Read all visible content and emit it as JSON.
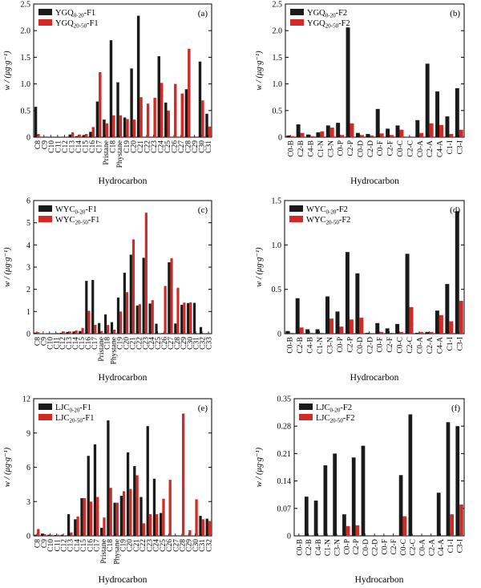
{
  "colors": {
    "series1": "#1a1a1a",
    "series2": "#d42a25"
  },
  "chart_data": [
    {
      "panel": "(a)",
      "type": "bar",
      "xlabel": "Hydrocarbon",
      "ylabel": "w / (μg·g⁻¹)",
      "ylim": [
        0,
        2.5
      ],
      "yticks": [
        "0",
        "0.5",
        "1.0",
        "1.5",
        "2.0",
        "2.5"
      ],
      "categories": [
        "C8",
        "C9",
        "C10",
        "C11",
        "C12",
        "C13",
        "C14",
        "C15",
        "C16",
        "C17",
        "Pristane",
        "C18",
        "Phystane",
        "C19",
        "C20",
        "C21",
        "C22",
        "C23",
        "C24",
        "C25",
        "C26",
        "C27",
        "C28",
        "C29",
        "C30",
        "C31"
      ],
      "series": [
        {
          "name_base": "YGQ",
          "name_sub": "0-20",
          "name_suffix": "-F1",
          "values": [
            0.57,
            0,
            0,
            0,
            0,
            0.05,
            0.02,
            0.04,
            0.1,
            0.67,
            0.33,
            1.82,
            1.03,
            0.37,
            1.29,
            2.28,
            0,
            0,
            1.52,
            0.65,
            0,
            0,
            0.9,
            0,
            1.42,
            0.44
          ]
        },
        {
          "name_base": "YGQ",
          "name_sub": "20-50",
          "name_suffix": "-F1",
          "values": [
            0.06,
            0,
            0,
            0,
            0,
            0.09,
            0.05,
            0.06,
            0.19,
            1.22,
            0.26,
            0.41,
            0.41,
            0.34,
            0.33,
            0.75,
            0.63,
            0.74,
            1.02,
            0.5,
            1.0,
            0.82,
            1.66,
            0,
            0.69,
            0.2
          ]
        }
      ]
    },
    {
      "panel": "(b)",
      "type": "bar",
      "xlabel": "Hydrocarbon",
      "ylabel": "w / (μg·g⁻¹)",
      "ylim": [
        0,
        2.5
      ],
      "yticks": [
        "0",
        "0.5",
        "1.0",
        "1.5",
        "2.0",
        "2.5"
      ],
      "categories": [
        "C0-B",
        "C2-B",
        "C4-B",
        "C1-N",
        "C3-N",
        "C0-P",
        "C2-P",
        "C0-D",
        "C2-D",
        "C0-F",
        "C2-F",
        "C0-C",
        "C2-C",
        "C0-A",
        "C2-A",
        "C4-A",
        "C1-I",
        "C3-I"
      ],
      "series": [
        {
          "name_base": "YGQ",
          "name_sub": "0-20",
          "name_suffix": "-F2",
          "values": [
            0.03,
            0.24,
            0.05,
            0.09,
            0.22,
            0.27,
            2.06,
            0.08,
            0.06,
            0.53,
            0.16,
            0.22,
            0,
            0.32,
            1.38,
            0.86,
            0.39,
            0.92
          ]
        },
        {
          "name_base": "YGQ",
          "name_sub": "20-50",
          "name_suffix": "-F2",
          "values": [
            0.02,
            0.08,
            0.02,
            0.11,
            0.18,
            0.04,
            0.26,
            0.04,
            0.03,
            0.07,
            0.04,
            0.14,
            0,
            0.08,
            0.26,
            0.23,
            0.06,
            0.14
          ]
        }
      ]
    },
    {
      "panel": "(c)",
      "type": "bar",
      "xlabel": "Hydrocarbon",
      "ylabel": "w / (μg·g⁻¹)",
      "ylim": [
        0,
        6
      ],
      "yticks": [
        "0",
        "1",
        "2",
        "3",
        "4",
        "5",
        "6"
      ],
      "categories": [
        "C8",
        "C9",
        "C10",
        "C11",
        "C12",
        "C13",
        "C14",
        "C15",
        "C16",
        "C17",
        "Pristane",
        "C18",
        "Phystane",
        "C19",
        "C20",
        "C21",
        "C22",
        "C23",
        "C24",
        "C25",
        "C26",
        "C27",
        "C28",
        "C29",
        "C30",
        "C31",
        "C32",
        "C33"
      ],
      "series": [
        {
          "name_base": "WYC",
          "name_sub": "0-20",
          "name_suffix": "-F1",
          "values": [
            0.05,
            0.01,
            0.01,
            0.01,
            0.04,
            0.08,
            0.1,
            0.12,
            2.38,
            2.42,
            0.48,
            0.87,
            0.52,
            1.63,
            2.75,
            3.56,
            1.27,
            3.42,
            1.36,
            0.45,
            0.03,
            3.22,
            0.46,
            1.3,
            1.38,
            1.39,
            0.3,
            0
          ]
        },
        {
          "name_base": "WYC",
          "name_sub": "20-50",
          "name_suffix": "-F1",
          "values": [
            0.07,
            0.02,
            0.03,
            0.04,
            0.1,
            0.1,
            0.15,
            0.26,
            1.03,
            0.4,
            0.12,
            0.39,
            0.18,
            1.0,
            1.87,
            4.25,
            1.33,
            5.45,
            1.51,
            0,
            2.15,
            3.4,
            2.07,
            1.4,
            1.41,
            0,
            0,
            0
          ]
        }
      ]
    },
    {
      "panel": "(d)",
      "type": "bar",
      "xlabel": "Hydrocarbon",
      "ylabel": "w / (μg·g⁻¹)",
      "ylim": [
        0,
        1.5
      ],
      "yticks": [
        "0",
        "0.5",
        "1.0",
        "1.5"
      ],
      "categories": [
        "C0-B",
        "C2-B",
        "C4-B",
        "C1-N",
        "C3-N",
        "C0-P",
        "C2-P",
        "C0-D",
        "C2-D",
        "C0-F",
        "C2-F",
        "C0-C",
        "C2-C",
        "C0-A",
        "C2-A",
        "C4-A",
        "C1-I",
        "C3-I"
      ],
      "series": [
        {
          "name_base": "WYC",
          "name_sub": "0-20",
          "name_suffix": "-F2",
          "values": [
            0.03,
            0.4,
            0.05,
            0.05,
            0.42,
            0.25,
            0.92,
            0.68,
            0.01,
            0.12,
            0.06,
            0.11,
            0.9,
            0.01,
            0.02,
            0.26,
            0.56,
            1.38
          ]
        },
        {
          "name_base": "WYC",
          "name_sub": "20-50",
          "name_suffix": "-F2",
          "values": [
            0.01,
            0.07,
            0.01,
            0.01,
            0.17,
            0.08,
            0.16,
            0.18,
            0,
            0.02,
            0.01,
            0.02,
            0.3,
            0.02,
            0.02,
            0.21,
            0.14,
            0.37
          ]
        }
      ]
    },
    {
      "panel": "(e)",
      "type": "bar",
      "xlabel": "Hydrocarbon",
      "ylabel": "w / (μg·g⁻¹)",
      "ylim": [
        0,
        12
      ],
      "yticks": [
        "0",
        "3",
        "6",
        "9",
        "12"
      ],
      "categories": [
        "C8",
        "C9",
        "C10",
        "C11",
        "C12",
        "C13",
        "C14",
        "C15",
        "C16",
        "C17",
        "Pristane",
        "C18",
        "Physane",
        "C19",
        "C20",
        "C21",
        "C22",
        "C23",
        "C24",
        "C25",
        "C26",
        "C27",
        "C28",
        "C29",
        "C30",
        "C31",
        "C32"
      ],
      "series": [
        {
          "name_base": "LJC",
          "name_sub": "0-20",
          "name_suffix": "-F1",
          "values": [
            0.1,
            0.2,
            0.1,
            0.08,
            0.1,
            1.9,
            1.45,
            3.3,
            7.0,
            8.0,
            0.7,
            10.1,
            2.9,
            3.5,
            7.3,
            6.1,
            3.4,
            9.6,
            5.0,
            2.0,
            0,
            0,
            0,
            0,
            0,
            1.75,
            1.5
          ]
        },
        {
          "name_base": "LJC",
          "name_sub": "20-50",
          "name_suffix": "-F1",
          "values": [
            0.6,
            0.15,
            0.1,
            0.1,
            0.05,
            0.3,
            1.7,
            3.3,
            3.0,
            3.4,
            1.6,
            4.2,
            2.9,
            3.9,
            4.1,
            5.3,
            1.1,
            1.9,
            1.9,
            3.25,
            4.9,
            0,
            10.7,
            0.5,
            3.2,
            1.45,
            1.3
          ]
        }
      ]
    },
    {
      "panel": "(f)",
      "type": "bar",
      "xlabel": "Hydrocarbon",
      "ylabel": "w / (μg·g⁻¹)",
      "ylim": [
        0,
        0.35
      ],
      "yticks": [
        "0",
        "0.07",
        "0.14",
        "0.21",
        "0.28",
        "0.35"
      ],
      "categories": [
        "C0-B",
        "C2-B",
        "C4-B",
        "C1-N",
        "C3-N",
        "C0-P",
        "C2-P",
        "C0-D",
        "C2-D",
        "C0-F",
        "C2-F",
        "C0-C",
        "C2-C",
        "C0-A",
        "C2-A",
        "C4-A",
        "C1-I",
        "C3-I"
      ],
      "series": [
        {
          "name_base": "LJC",
          "name_sub": "0-20",
          "name_suffix": "-F2",
          "values": [
            0,
            0.1,
            0.09,
            0.18,
            0.21,
            0.055,
            0.2,
            0.23,
            0,
            0,
            0,
            0.155,
            0.31,
            0,
            0,
            0.11,
            0.29,
            0.28
          ]
        },
        {
          "name_base": "LJC",
          "name_sub": "20-50",
          "name_suffix": "-F2",
          "values": [
            0,
            0,
            0,
            0,
            0,
            0.025,
            0.027,
            0,
            0,
            0,
            0,
            0.05,
            0,
            0,
            0,
            0,
            0.055,
            0.08
          ]
        }
      ]
    }
  ]
}
